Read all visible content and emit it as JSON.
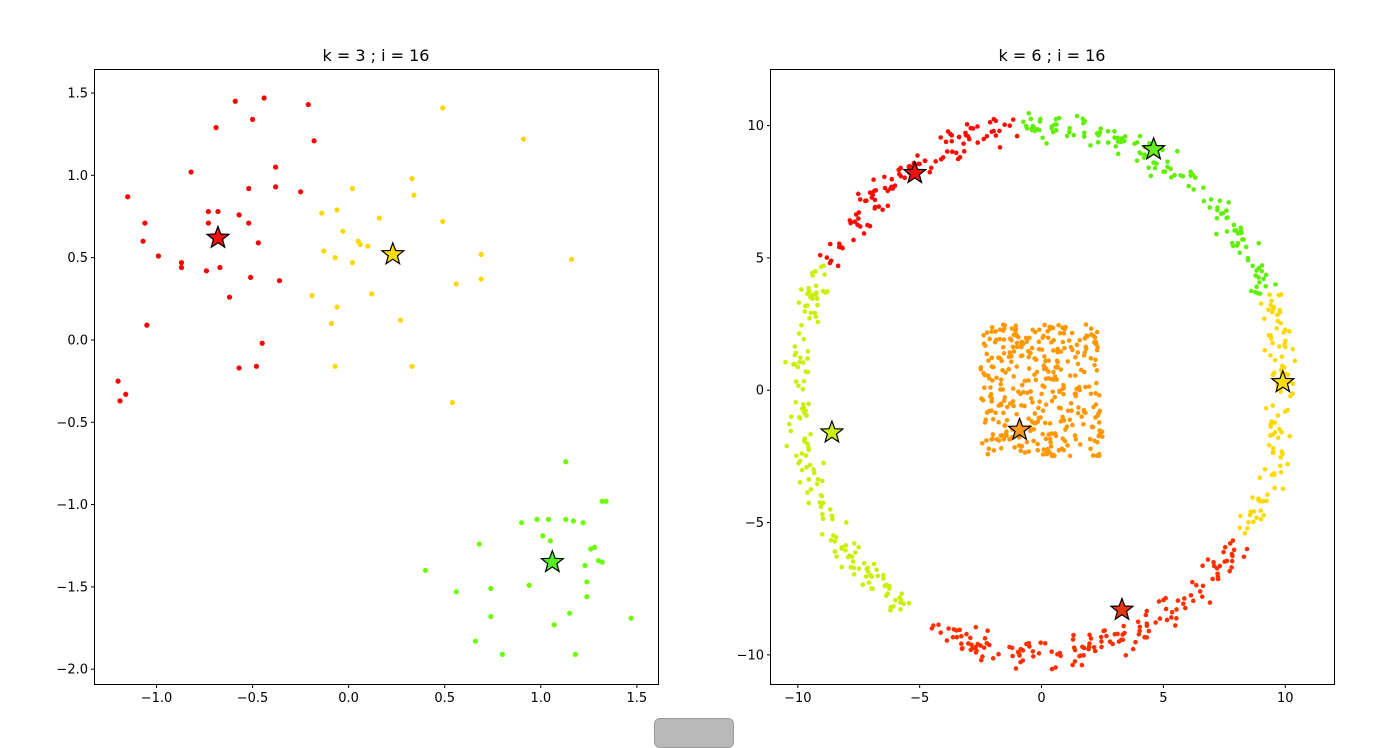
{
  "chart_data": [
    {
      "type": "scatter",
      "title": "k = 3 ; i = 16",
      "xlim": [
        -1.32,
        1.61
      ],
      "ylim": [
        -2.09,
        1.64
      ],
      "xticks": [
        -1.0,
        -0.5,
        0.0,
        0.5,
        1.0,
        1.5
      ],
      "xtick_labels": [
        "−1.0",
        "−0.5",
        "0.0",
        "0.5",
        "1.0",
        "1.5"
      ],
      "yticks": [
        1.5,
        1.0,
        0.5,
        0.0,
        -0.5,
        -1.0,
        -1.5,
        -2.0
      ],
      "ytick_labels": [
        "1.5",
        "1.0",
        "0.5",
        "0.0",
        "−0.5",
        "−1.0",
        "−1.5",
        "−2.0"
      ],
      "grid": false,
      "series": [
        {
          "color": "#ff0000",
          "points": [
            [
              -0.44,
              1.47
            ],
            [
              -0.59,
              1.45
            ],
            [
              -0.21,
              1.43
            ],
            [
              -0.5,
              1.34
            ],
            [
              -0.69,
              1.29
            ],
            [
              -0.18,
              1.21
            ],
            [
              -0.38,
              1.05
            ],
            [
              -0.82,
              1.02
            ],
            [
              -0.38,
              0.93
            ],
            [
              -0.52,
              0.92
            ],
            [
              -0.25,
              0.9
            ],
            [
              -1.15,
              0.87
            ],
            [
              -0.73,
              0.78
            ],
            [
              -0.68,
              0.78
            ],
            [
              -0.57,
              0.76
            ],
            [
              -1.06,
              0.71
            ],
            [
              -0.52,
              0.71
            ],
            [
              -0.73,
              0.71
            ],
            [
              -1.07,
              0.6
            ],
            [
              -0.47,
              0.59
            ],
            [
              -0.99,
              0.51
            ],
            [
              -0.87,
              0.47
            ],
            [
              -0.87,
              0.44
            ],
            [
              -0.67,
              0.44
            ],
            [
              -0.74,
              0.42
            ],
            [
              -0.51,
              0.38
            ],
            [
              -0.36,
              0.36
            ],
            [
              -0.62,
              0.26
            ],
            [
              -1.05,
              0.09
            ],
            [
              -0.45,
              -0.02
            ],
            [
              -0.48,
              -0.16
            ],
            [
              -0.57,
              -0.17
            ],
            [
              -1.2,
              -0.25
            ],
            [
              -1.16,
              -0.33
            ],
            [
              -1.19,
              -0.37
            ]
          ]
        },
        {
          "color": "#ffd700",
          "points": [
            [
              0.49,
              1.41
            ],
            [
              0.91,
              1.22
            ],
            [
              0.33,
              0.98
            ],
            [
              0.02,
              0.92
            ],
            [
              0.34,
              0.88
            ],
            [
              -0.06,
              0.79
            ],
            [
              -0.14,
              0.77
            ],
            [
              0.16,
              0.74
            ],
            [
              0.49,
              0.72
            ],
            [
              -0.03,
              0.66
            ],
            [
              0.05,
              0.6
            ],
            [
              0.06,
              0.58
            ],
            [
              0.1,
              0.57
            ],
            [
              -0.13,
              0.54
            ],
            [
              0.69,
              0.52
            ],
            [
              -0.07,
              0.5
            ],
            [
              1.16,
              0.49
            ],
            [
              0.02,
              0.47
            ],
            [
              0.69,
              0.37
            ],
            [
              0.56,
              0.34
            ],
            [
              -0.19,
              0.27
            ],
            [
              0.12,
              0.28
            ],
            [
              -0.06,
              0.2
            ],
            [
              0.27,
              0.12
            ],
            [
              -0.09,
              0.1
            ],
            [
              -0.07,
              -0.16
            ],
            [
              0.33,
              -0.16
            ],
            [
              0.54,
              -0.38
            ]
          ]
        },
        {
          "color": "#6aff00",
          "points": [
            [
              1.13,
              -0.74
            ],
            [
              1.34,
              -0.98
            ],
            [
              1.32,
              -0.98
            ],
            [
              0.9,
              -1.11
            ],
            [
              0.98,
              -1.09
            ],
            [
              1.04,
              -1.09
            ],
            [
              1.13,
              -1.09
            ],
            [
              1.17,
              -1.1
            ],
            [
              1.22,
              -1.11
            ],
            [
              1.01,
              -1.19
            ],
            [
              1.05,
              -1.22
            ],
            [
              0.68,
              -1.24
            ],
            [
              1.28,
              -1.26
            ],
            [
              1.26,
              -1.27
            ],
            [
              1.3,
              -1.34
            ],
            [
              1.32,
              -1.35
            ],
            [
              1.23,
              -1.37
            ],
            [
              0.4,
              -1.4
            ],
            [
              1.24,
              -1.47
            ],
            [
              0.94,
              -1.49
            ],
            [
              0.74,
              -1.51
            ],
            [
              0.56,
              -1.53
            ],
            [
              1.24,
              -1.56
            ],
            [
              1.47,
              -1.69
            ],
            [
              1.15,
              -1.66
            ],
            [
              0.74,
              -1.68
            ],
            [
              1.07,
              -1.73
            ],
            [
              0.66,
              -1.83
            ],
            [
              0.8,
              -1.91
            ],
            [
              1.18,
              -1.91
            ]
          ]
        }
      ],
      "centroids": [
        {
          "color": "#ee1111",
          "x": -0.68,
          "y": 0.62
        },
        {
          "color": "#ffdd00",
          "x": 0.23,
          "y": 0.52
        },
        {
          "color": "#55ee22",
          "x": 1.06,
          "y": -1.35
        }
      ]
    },
    {
      "type": "scatter",
      "title": "k = 6 ; i = 16",
      "xlim": [
        -11.1,
        12.0
      ],
      "ylim": [
        -11.1,
        12.1
      ],
      "xticks": [
        -10,
        -5,
        0,
        5,
        10
      ],
      "xtick_labels": [
        "−10",
        "−5",
        "0",
        "5",
        "10"
      ],
      "yticks": [
        10,
        5,
        0,
        -5,
        -10
      ],
      "ytick_labels": [
        "10",
        "5",
        "0",
        "−5",
        "−10"
      ],
      "grid": false,
      "clusters": [
        {
          "color": "#ff0a00",
          "shape": "ring",
          "angle_from": 95,
          "angle_to": 152
        },
        {
          "color": "#5ff000",
          "shape": "ring",
          "angle_from": 22,
          "angle_to": 95
        },
        {
          "color": "#ffd800",
          "shape": "ring",
          "angle_from": -35,
          "angle_to": 22
        },
        {
          "color": "#ff3000",
          "shape": "ring",
          "angle_from": -118,
          "angle_to": -35
        },
        {
          "color": "#c8f000",
          "shape": "ring",
          "angle_from": 152,
          "angle_to": 237
        },
        {
          "color": "#ff9800",
          "shape": "square",
          "x_range": [
            -2.5,
            2.5
          ],
          "y_range": [
            -2.5,
            2.5
          ]
        }
      ],
      "centroids": [
        {
          "color": "#ee1111",
          "x": -5.2,
          "y": 8.2
        },
        {
          "color": "#66ee22",
          "x": 4.6,
          "y": 9.1
        },
        {
          "color": "#ffdd00",
          "x": 9.9,
          "y": 0.3
        },
        {
          "color": "#ff9922",
          "x": -0.9,
          "y": -1.5
        },
        {
          "color": "#ccee11",
          "x": -8.6,
          "y": -1.6
        },
        {
          "color": "#ee3311",
          "x": 3.3,
          "y": -8.3
        }
      ]
    }
  ]
}
